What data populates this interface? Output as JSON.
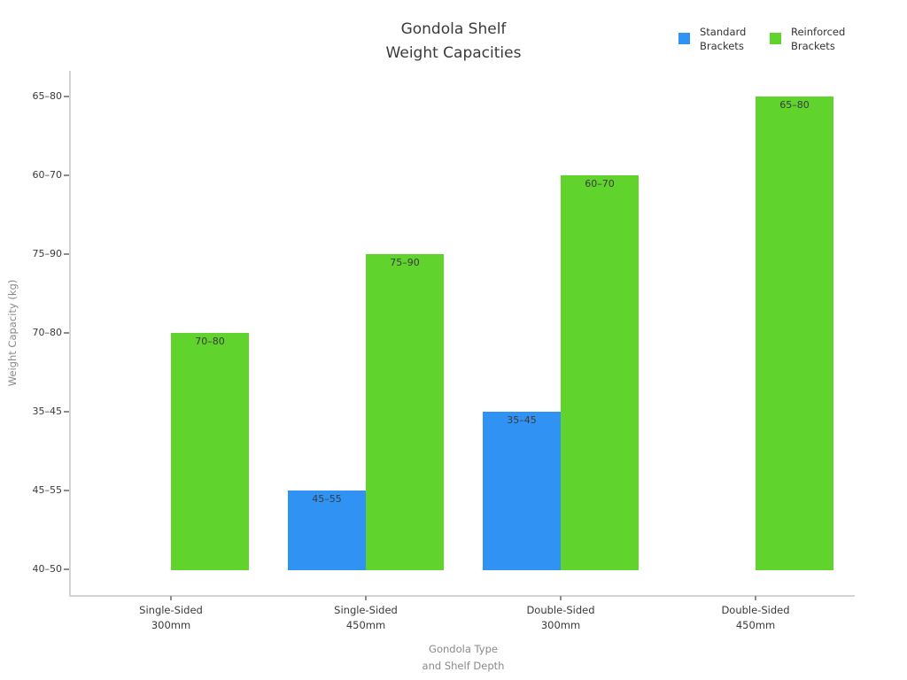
{
  "chart_data": {
    "type": "bar",
    "title": "Gondola Shelf\nWeight Capacities",
    "title_lines": [
      "Gondola Shelf",
      "Weight Capacities"
    ],
    "xlabel": "Gondola Type\nand Shelf Depth",
    "xlabel_lines": [
      "Gondola Type",
      "and Shelf Depth"
    ],
    "ylabel": "Weight Capacity (kg)",
    "x_axis_type": "categorical",
    "y_axis_type": "categorical",
    "grid": false,
    "legend_position": "top-right",
    "categories": [
      "Single-Sided 300mm",
      "Single-Sided 450mm",
      "Double-Sided 300mm",
      "Double-Sided 450mm"
    ],
    "category_lines": [
      [
        "Single-Sided",
        "300mm"
      ],
      [
        "Single-Sided",
        "450mm"
      ],
      [
        "Double-Sided",
        "300mm"
      ],
      [
        "Double-Sided",
        "450mm"
      ]
    ],
    "y_ticks_bottom_to_top": [
      "40–50",
      "45–55",
      "35–45",
      "70–80",
      "75–90",
      "60–70",
      "65–80"
    ],
    "baseline_value": "40–50",
    "bar_labels_shown": true,
    "series": [
      {
        "name": "Standard Brackets",
        "name_lines": [
          "Standard",
          "Brackets"
        ],
        "color": "#3093f3",
        "values": [
          null,
          "45–55",
          "35–45",
          null
        ]
      },
      {
        "name": "Reinforced Brackets",
        "name_lines": [
          "Reinforced",
          "Brackets"
        ],
        "color": "#60d32c",
        "values": [
          "70–80",
          "75–90",
          "60–70",
          "65–80"
        ]
      }
    ]
  },
  "colors": {
    "background": "#ffffff",
    "standard_brackets": "#3093f3",
    "reinforced_brackets": "#60d32c",
    "title_text": "#3a3a3a",
    "tick_text": "#3a3a3a",
    "axis_label_text": "#8a8a8a",
    "spine": "#d4d4d4"
  }
}
